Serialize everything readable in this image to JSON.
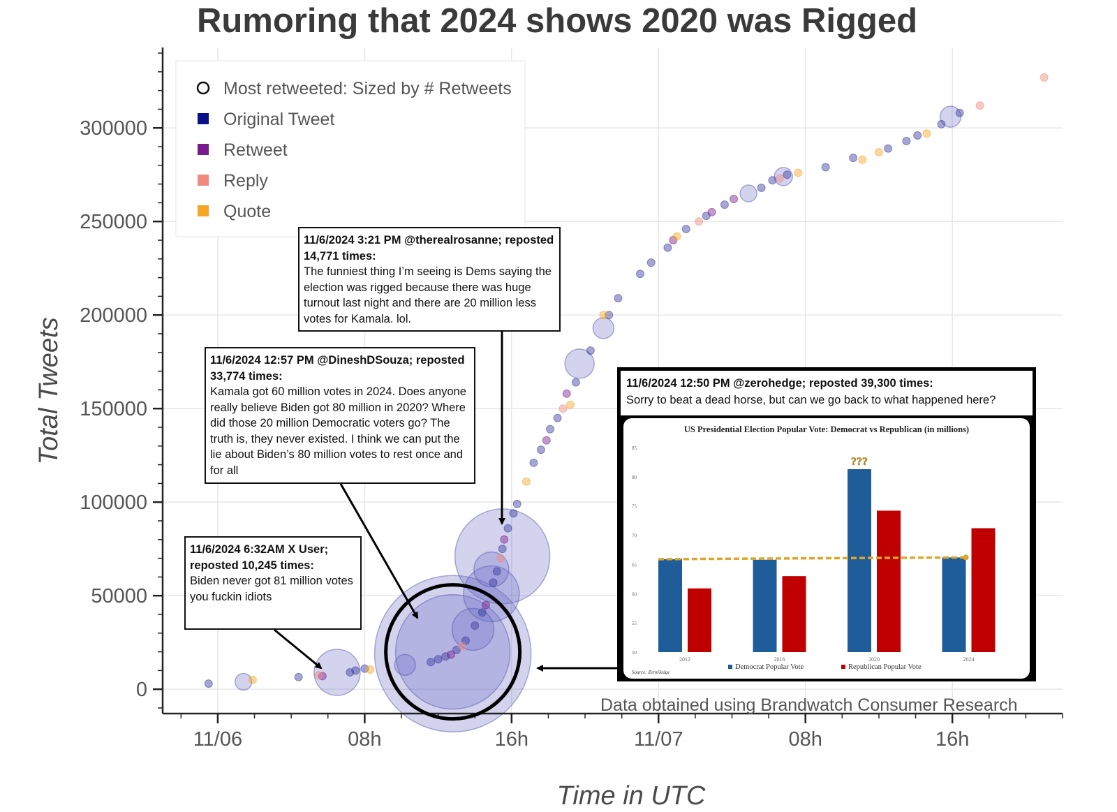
{
  "chart_data": {
    "type": "scatter",
    "title": "Rumoring that 2024 shows 2020 was Rigged",
    "xlabel": "Time in UTC",
    "ylabel": "Total Tweets",
    "x_unit": "hours since 11/06 00:00 UTC",
    "xlim": [
      -3,
      46
    ],
    "ylim": [
      -13000,
      343000
    ],
    "x_ticks": [
      {
        "value": 0,
        "label": "11/06"
      },
      {
        "value": 8,
        "label": "08h"
      },
      {
        "value": 16,
        "label": "16h"
      },
      {
        "value": 24,
        "label": "11/07"
      },
      {
        "value": 32,
        "label": "08h"
      },
      {
        "value": 40,
        "label": "16h"
      }
    ],
    "y_ticks": [
      0,
      50000,
      100000,
      150000,
      200000,
      250000,
      300000
    ],
    "grid": true,
    "legend": {
      "placement": "top-left",
      "entries": [
        {
          "label": "Most retweeted: Sized by # Retweets",
          "marker": "circle-outline",
          "color": "#111111"
        },
        {
          "label": "Original Tweet",
          "marker": "square",
          "color": "#0a0f8a"
        },
        {
          "label": "Retweet",
          "marker": "square",
          "color": "#7a1b8c"
        },
        {
          "label": "Reply",
          "marker": "square",
          "color": "#f08a80"
        },
        {
          "label": "Quote",
          "marker": "square",
          "color": "#f5a623"
        }
      ]
    },
    "series": [
      {
        "name": "Most retweeted: Sized by # Retweets",
        "points": [
          {
            "x": 1.4,
            "y": 4000,
            "r": 12
          },
          {
            "x": 6.5,
            "y": 9000,
            "r": 33
          },
          {
            "x": 12.8,
            "y": 19000,
            "r": 112
          },
          {
            "x": 12.8,
            "y": 20000,
            "r": 82
          },
          {
            "x": 15.5,
            "y": 71000,
            "r": 68
          },
          {
            "x": 14.9,
            "y": 51000,
            "r": 40
          },
          {
            "x": 14.9,
            "y": 64000,
            "r": 25
          },
          {
            "x": 13.9,
            "y": 32000,
            "r": 30
          },
          {
            "x": 10.2,
            "y": 13000,
            "r": 15
          },
          {
            "x": 19.7,
            "y": 174000,
            "r": 21
          },
          {
            "x": 21.0,
            "y": 193000,
            "r": 15
          },
          {
            "x": 28.9,
            "y": 265000,
            "r": 12
          },
          {
            "x": 30.8,
            "y": 274000,
            "r": 13
          },
          {
            "x": 39.9,
            "y": 306000,
            "r": 15
          }
        ]
      },
      {
        "name": "Original Tweet",
        "color": "#3a3a9e",
        "points": [
          {
            "x": -0.5,
            "y": 3000
          },
          {
            "x": 4.4,
            "y": 6500
          },
          {
            "x": 7.2,
            "y": 9000
          },
          {
            "x": 7.5,
            "y": 10000
          },
          {
            "x": 8.0,
            "y": 11000
          },
          {
            "x": 11.6,
            "y": 14500
          },
          {
            "x": 12.0,
            "y": 16000
          },
          {
            "x": 12.4,
            "y": 17500
          },
          {
            "x": 13.0,
            "y": 21000
          },
          {
            "x": 13.5,
            "y": 26000
          },
          {
            "x": 14.0,
            "y": 34000
          },
          {
            "x": 14.4,
            "y": 41000
          },
          {
            "x": 15.0,
            "y": 57000
          },
          {
            "x": 15.2,
            "y": 63000
          },
          {
            "x": 15.5,
            "y": 75000
          },
          {
            "x": 15.8,
            "y": 86000
          },
          {
            "x": 16.1,
            "y": 94000
          },
          {
            "x": 16.3,
            "y": 99000
          },
          {
            "x": 17.2,
            "y": 121000
          },
          {
            "x": 17.6,
            "y": 128000
          },
          {
            "x": 18.1,
            "y": 139000
          },
          {
            "x": 18.5,
            "y": 145000
          },
          {
            "x": 19.5,
            "y": 164000
          },
          {
            "x": 20.3,
            "y": 181000
          },
          {
            "x": 21.3,
            "y": 200000
          },
          {
            "x": 21.8,
            "y": 209000
          },
          {
            "x": 23.0,
            "y": 222000
          },
          {
            "x": 23.6,
            "y": 228000
          },
          {
            "x": 24.5,
            "y": 236000
          },
          {
            "x": 25.5,
            "y": 246000
          },
          {
            "x": 26.6,
            "y": 253000
          },
          {
            "x": 27.6,
            "y": 259000
          },
          {
            "x": 29.6,
            "y": 268000
          },
          {
            "x": 30.2,
            "y": 272000
          },
          {
            "x": 31.0,
            "y": 275000
          },
          {
            "x": 33.1,
            "y": 279000
          },
          {
            "x": 34.6,
            "y": 284000
          },
          {
            "x": 36.5,
            "y": 289000
          },
          {
            "x": 37.5,
            "y": 293000
          },
          {
            "x": 38.1,
            "y": 296000
          },
          {
            "x": 39.4,
            "y": 302000
          },
          {
            "x": 40.4,
            "y": 308000
          }
        ]
      },
      {
        "name": "Retweet",
        "color": "#7a1b8c",
        "points": [
          {
            "x": 5.7,
            "y": 7000
          },
          {
            "x": 12.7,
            "y": 18500
          },
          {
            "x": 14.6,
            "y": 45000
          },
          {
            "x": 15.6,
            "y": 80000
          },
          {
            "x": 17.9,
            "y": 133000
          },
          {
            "x": 19.0,
            "y": 158000
          },
          {
            "x": 24.8,
            "y": 240000
          },
          {
            "x": 26.9,
            "y": 255000
          },
          {
            "x": 28.1,
            "y": 262000
          }
        ]
      },
      {
        "name": "Reply",
        "color": "#f08a80",
        "points": [
          {
            "x": 5.5,
            "y": 7500
          },
          {
            "x": 13.3,
            "y": 23000
          },
          {
            "x": 15.4,
            "y": 70000
          },
          {
            "x": 18.8,
            "y": 150000
          },
          {
            "x": 26.2,
            "y": 250000
          },
          {
            "x": 30.6,
            "y": 273000
          },
          {
            "x": 41.5,
            "y": 312000
          },
          {
            "x": 45.0,
            "y": 327000
          }
        ]
      },
      {
        "name": "Quote",
        "color": "#f5a623",
        "points": [
          {
            "x": 1.9,
            "y": 5000
          },
          {
            "x": 8.3,
            "y": 10500
          },
          {
            "x": 16.8,
            "y": 111000
          },
          {
            "x": 19.2,
            "y": 152000
          },
          {
            "x": 21.0,
            "y": 200000
          },
          {
            "x": 25.0,
            "y": 242000
          },
          {
            "x": 31.6,
            "y": 276000
          },
          {
            "x": 35.1,
            "y": 283000
          },
          {
            "x": 36.0,
            "y": 287000
          },
          {
            "x": 38.6,
            "y": 297000
          }
        ]
      }
    ]
  },
  "annotations": [
    {
      "header": "11/6/2024 3:21 PM @therealrosanne; reposted 14,771 times:",
      "body": "The funniest thing I’m seeing is Dems saying the election was rigged because there was huge turnout last night and there are 20 million less votes for Kamala. lol."
    },
    {
      "header": "11/6/2024  12:57 PM @DineshDSouza; reposted 33,774 times:",
      "body": "Kamala got 60 million votes in 2024. Does anyone really believe Biden got 80 million in 2020? Where did those 20 million Democratic voters go? The truth is, they never existed. I think we can put the lie about Biden’s 80 million votes to rest once and for all"
    },
    {
      "header": "11/6/2024 6:32AM X User; reposted 10,245 times:",
      "body": "Biden never got 81 million votes you fuckin idiots"
    },
    {
      "header": "11/6/2024  12:50 PM @zerohedge; reposted 39,300 times:",
      "body": "Sorry to beat a dead horse, but can we go back to what happened here?"
    }
  ],
  "inset_chart": {
    "title": "US Presidential Election Popular Vote: Democrat vs Republican (in millions)",
    "categories": [
      "2012",
      "2016",
      "2020",
      "2024"
    ],
    "ylim": [
      50,
      85
    ],
    "y_ticks": [
      "85",
      "80",
      "75",
      "70",
      "65",
      "60",
      "55",
      "50"
    ],
    "series": [
      {
        "name": "Democrat Popular Vote",
        "color": "#1f5c9a",
        "values": [
          65.9,
          65.8,
          81.3,
          66.2
        ]
      },
      {
        "name": "Republican Popular Vote",
        "color": "#c00000",
        "values": [
          60.9,
          63.0,
          74.2,
          71.2
        ]
      }
    ],
    "callout": "???",
    "trend_color": "#e0a528",
    "source": "Source: ZeroHedge"
  },
  "source_note": "Data obtained using Brandwatch Consumer Research"
}
